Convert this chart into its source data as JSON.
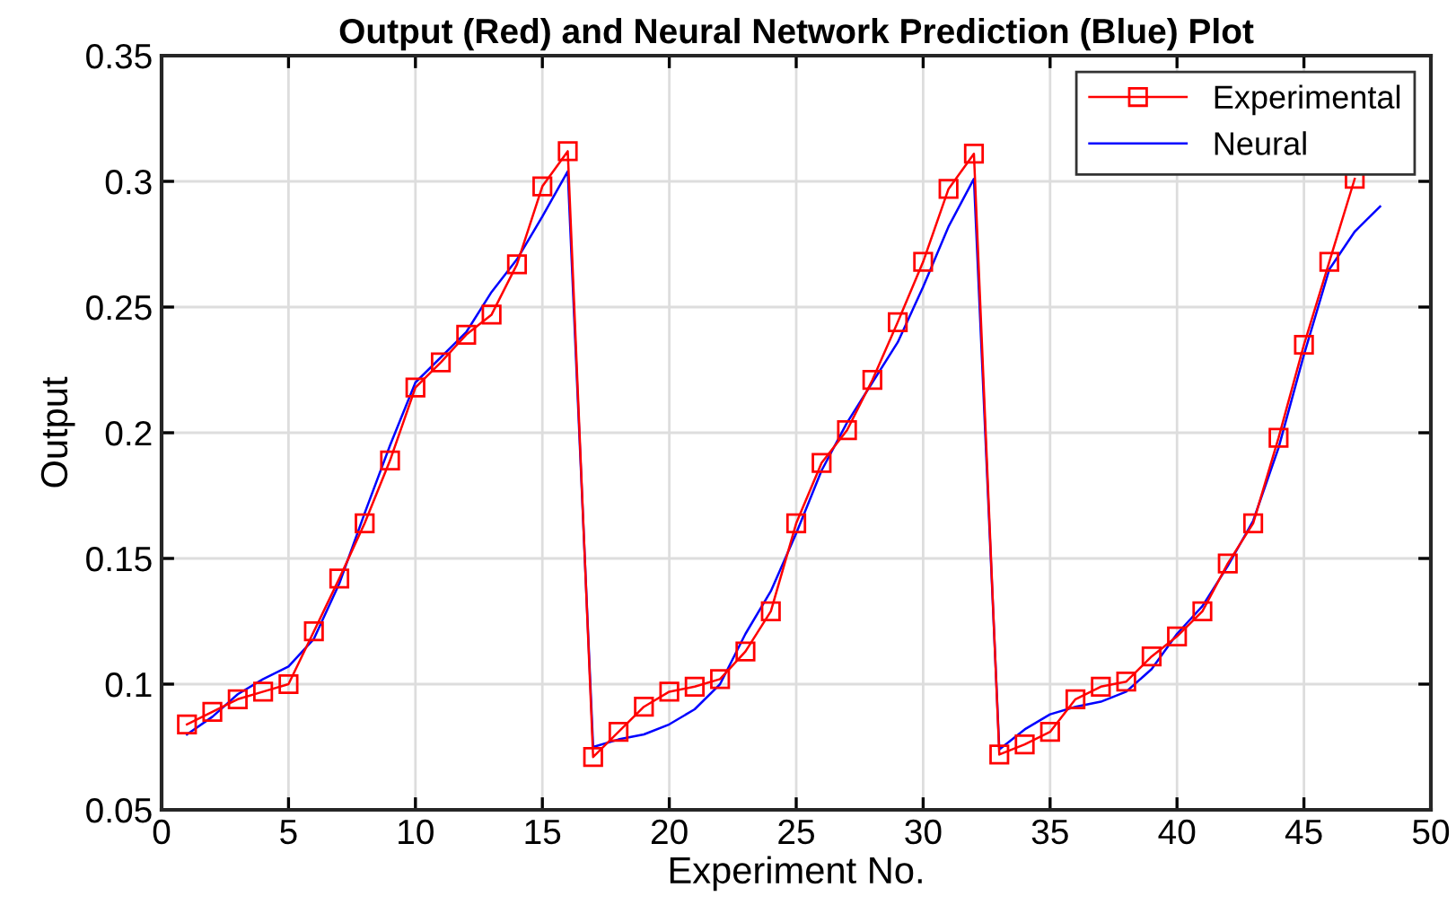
{
  "chart_data": {
    "type": "line",
    "title": "Output (Red) and Neural Network Prediction (Blue) Plot",
    "xlabel": "Experiment No.",
    "ylabel": "Output",
    "x": [
      1,
      2,
      3,
      4,
      5,
      6,
      7,
      8,
      9,
      10,
      11,
      12,
      13,
      14,
      15,
      16,
      17,
      18,
      19,
      20,
      21,
      22,
      23,
      24,
      25,
      26,
      27,
      28,
      29,
      30,
      31,
      32,
      33,
      34,
      35,
      36,
      37,
      38,
      39,
      40,
      41,
      42,
      43,
      44,
      45,
      46,
      47,
      48
    ],
    "series": [
      {
        "name": "Experimental",
        "color": "#ff0000",
        "marker": "square",
        "values": [
          0.084,
          0.089,
          0.094,
          0.097,
          0.1,
          0.121,
          0.142,
          0.164,
          0.189,
          0.218,
          0.228,
          0.239,
          0.247,
          0.267,
          0.298,
          0.312,
          0.071,
          0.081,
          0.091,
          0.097,
          0.099,
          0.102,
          0.113,
          0.129,
          0.164,
          0.188,
          0.201,
          0.221,
          0.244,
          0.268,
          0.297,
          0.311,
          0.072,
          0.076,
          0.081,
          0.094,
          0.099,
          0.101,
          0.111,
          0.119,
          0.129,
          0.148,
          0.164,
          0.198,
          0.235,
          0.268,
          0.301,
          null
        ]
      },
      {
        "name": "Neural",
        "color": "#0000ff",
        "marker": "none",
        "values": [
          0.08,
          0.087,
          0.096,
          0.102,
          0.107,
          0.118,
          0.14,
          0.168,
          0.195,
          0.22,
          0.23,
          0.24,
          0.256,
          0.269,
          0.286,
          0.304,
          0.075,
          0.078,
          0.08,
          0.084,
          0.09,
          0.1,
          0.12,
          0.137,
          0.16,
          0.185,
          0.204,
          0.22,
          0.236,
          0.258,
          0.282,
          0.301,
          0.074,
          0.082,
          0.088,
          0.091,
          0.093,
          0.097,
          0.106,
          0.12,
          0.131,
          0.147,
          0.165,
          0.194,
          0.231,
          0.265,
          0.28,
          0.29
        ]
      }
    ],
    "xlim": [
      0,
      50
    ],
    "xticks": [
      0,
      5,
      10,
      15,
      20,
      25,
      30,
      35,
      40,
      45,
      50
    ],
    "ylim": [
      0.05,
      0.35
    ],
    "yticks": [
      0.05,
      0.1,
      0.15,
      0.2,
      0.25,
      0.3,
      0.35
    ],
    "grid": true,
    "legend": "top right"
  }
}
